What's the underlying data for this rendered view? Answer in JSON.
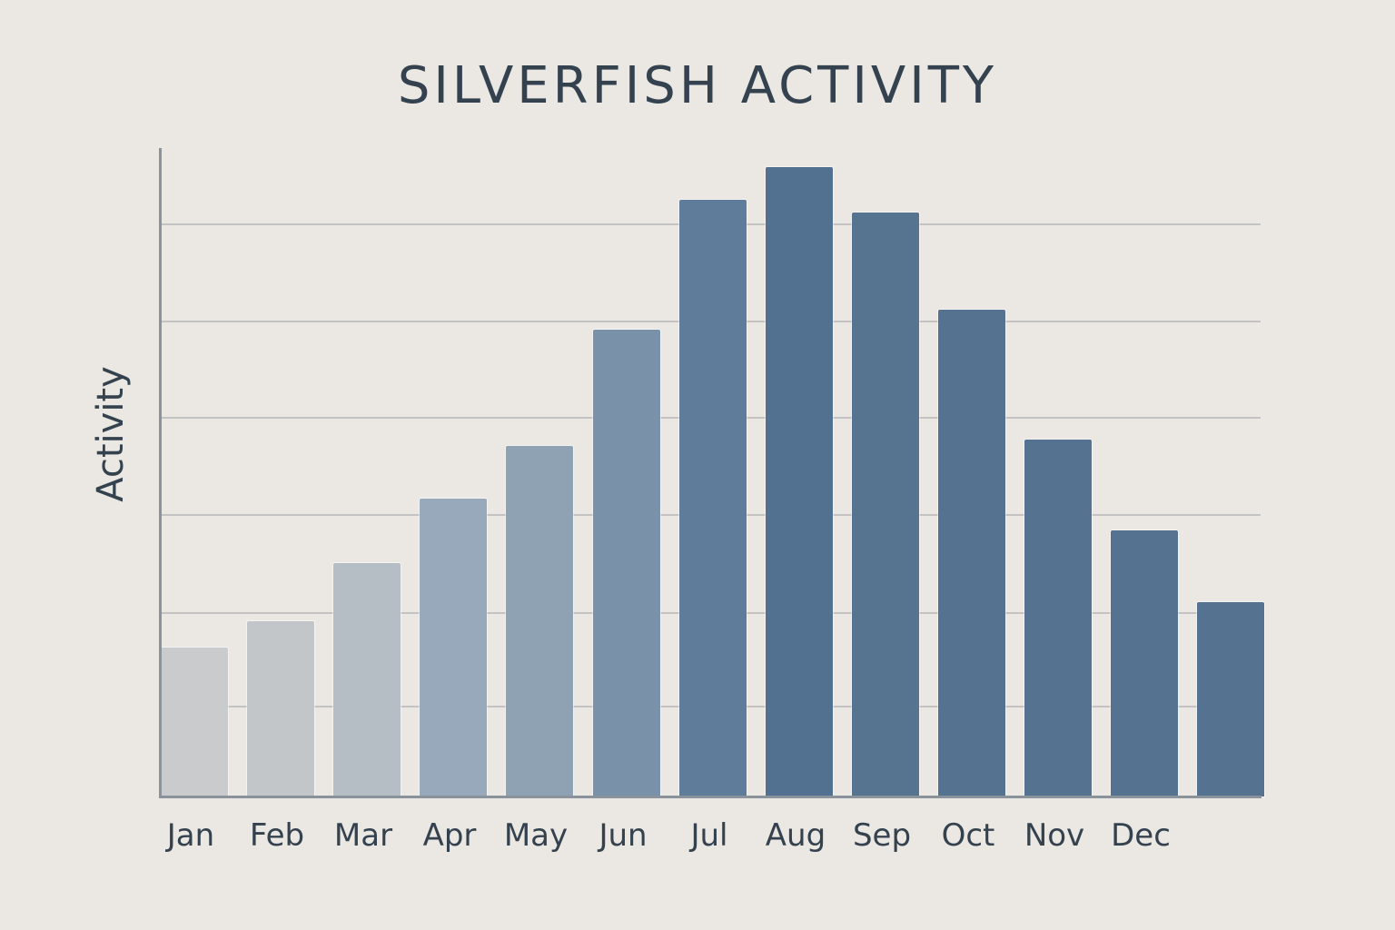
{
  "chart_data": {
    "type": "bar",
    "title": "SILVERFISH ACTIVITY",
    "xlabel": "",
    "ylabel": "Activity",
    "categories": [
      "Jan",
      "Feb",
      "Mar",
      "Apr",
      "May",
      "Jun",
      "Jul",
      "Aug",
      "Sep",
      "Oct",
      "Nov",
      "Dec",
      ""
    ],
    "values": [
      23,
      27,
      36,
      46,
      54,
      72,
      92,
      97,
      90,
      75,
      55,
      41,
      30
    ],
    "ylim": [
      0,
      100
    ],
    "grid": true,
    "y_tick_labels_shown": false,
    "legend": null,
    "notes": "13 bars drawn but only 12 month labels shown; labels are left-aligned under bars 1-12, 13th bar unlabeled. Values are relative estimates (no y tick labels)."
  },
  "colors": {
    "background": "#ebe7e2",
    "text": "#34424f",
    "axis": "#8a929b",
    "grid": "#c3c3c4",
    "bars": [
      "#c9cbcc",
      "#c2c6c9",
      "#b6bec5",
      "#97a9ba",
      "#8ea2b4",
      "#7a92a9",
      "#5f7d9a",
      "#52708f",
      "#56738f",
      "#557390",
      "#557391",
      "#557391",
      "#557391"
    ]
  }
}
